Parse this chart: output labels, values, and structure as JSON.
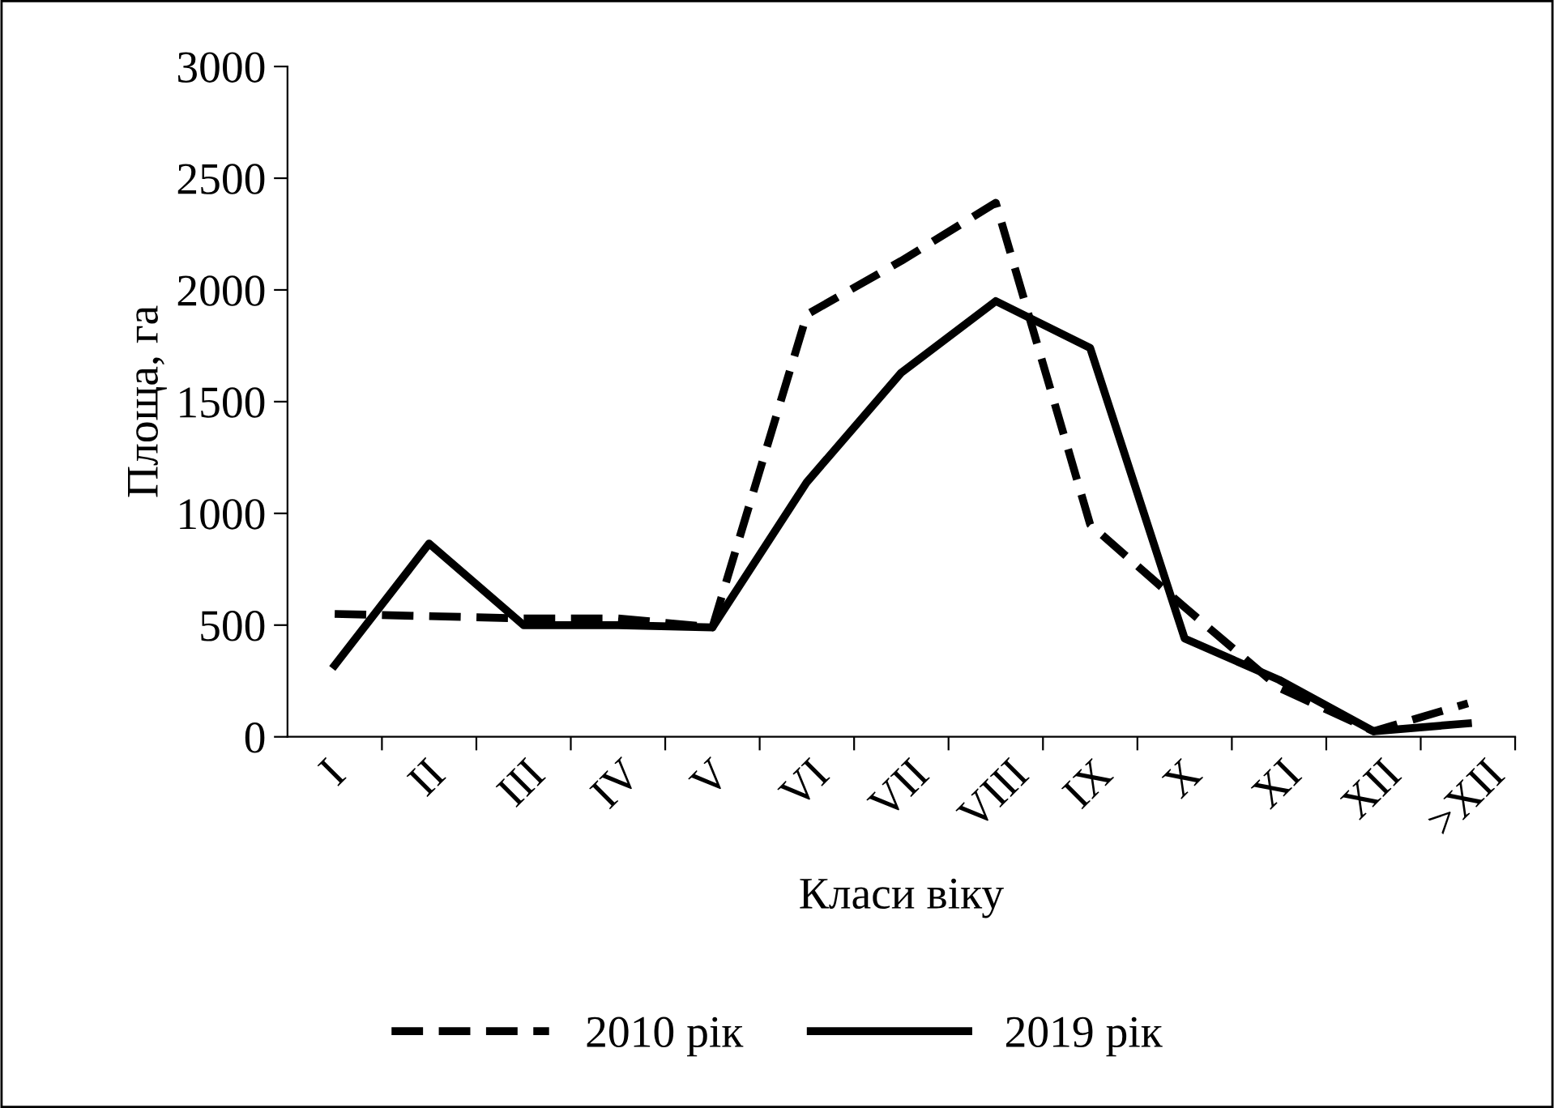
{
  "chart_data": {
    "type": "line",
    "xlabel": "Класи віку",
    "ylabel": "Площа, га",
    "categories": [
      "I",
      "II",
      "III",
      "IV",
      "V",
      "VI",
      "VII",
      "VIII",
      "IX",
      "X",
      "XI",
      "XII",
      ">XII"
    ],
    "series": [
      {
        "name": "2010 рік",
        "color": "#000000",
        "line_style": "dashed",
        "values": [
          550,
          540,
          530,
          530,
          490,
          1890,
          2130,
          2390,
          950,
          580,
          220,
          25,
          150
        ]
      },
      {
        "name": "2019 рік",
        "color": "#000000",
        "line_style": "solid",
        "values": [
          320,
          865,
          500,
          500,
          490,
          1140,
          1630,
          1950,
          1740,
          440,
          255,
          25,
          60
        ]
      }
    ],
    "ylim": [
      0,
      3000
    ],
    "yticks": [
      0,
      500,
      1000,
      1500,
      2000,
      2500,
      3000
    ],
    "grid": false,
    "legend": "bottom",
    "marker": "none"
  }
}
